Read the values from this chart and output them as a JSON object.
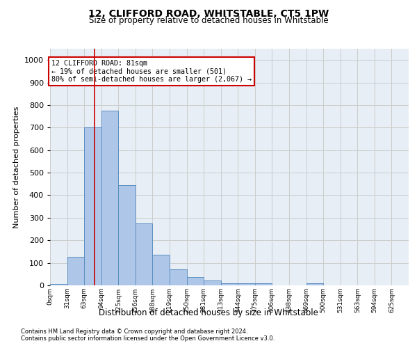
{
  "title1": "12, CLIFFORD ROAD, WHITSTABLE, CT5 1PW",
  "title2": "Size of property relative to detached houses in Whitstable",
  "xlabel": "Distribution of detached houses by size in Whitstable",
  "ylabel": "Number of detached properties",
  "footer1": "Contains HM Land Registry data © Crown copyright and database right 2024.",
  "footer2": "Contains public sector information licensed under the Open Government Licence v3.0.",
  "bin_labels": [
    "0sqm",
    "31sqm",
    "63sqm",
    "94sqm",
    "125sqm",
    "156sqm",
    "188sqm",
    "219sqm",
    "250sqm",
    "281sqm",
    "313sqm",
    "344sqm",
    "375sqm",
    "406sqm",
    "438sqm",
    "469sqm",
    "500sqm",
    "531sqm",
    "563sqm",
    "594sqm",
    "625sqm"
  ],
  "bar_values": [
    5,
    128,
    700,
    775,
    445,
    275,
    135,
    70,
    38,
    22,
    10,
    10,
    8,
    0,
    0,
    8,
    0,
    0,
    0,
    0,
    0
  ],
  "bar_color": "#aec6e8",
  "bar_edge_color": "#5a8fc0",
  "property_line_x": 81,
  "property_line_color": "#cc0000",
  "annotation_text": "12 CLIFFORD ROAD: 81sqm\n← 19% of detached houses are smaller (501)\n80% of semi-detached houses are larger (2,067) →",
  "annotation_box_color": "#ffffff",
  "annotation_box_edge_color": "#cc0000",
  "ylim": [
    0,
    1050
  ],
  "yticks": [
    0,
    100,
    200,
    300,
    400,
    500,
    600,
    700,
    800,
    900,
    1000
  ],
  "grid_color": "#cccccc",
  "bg_color": "#e8eef5",
  "bin_width": 31.25
}
